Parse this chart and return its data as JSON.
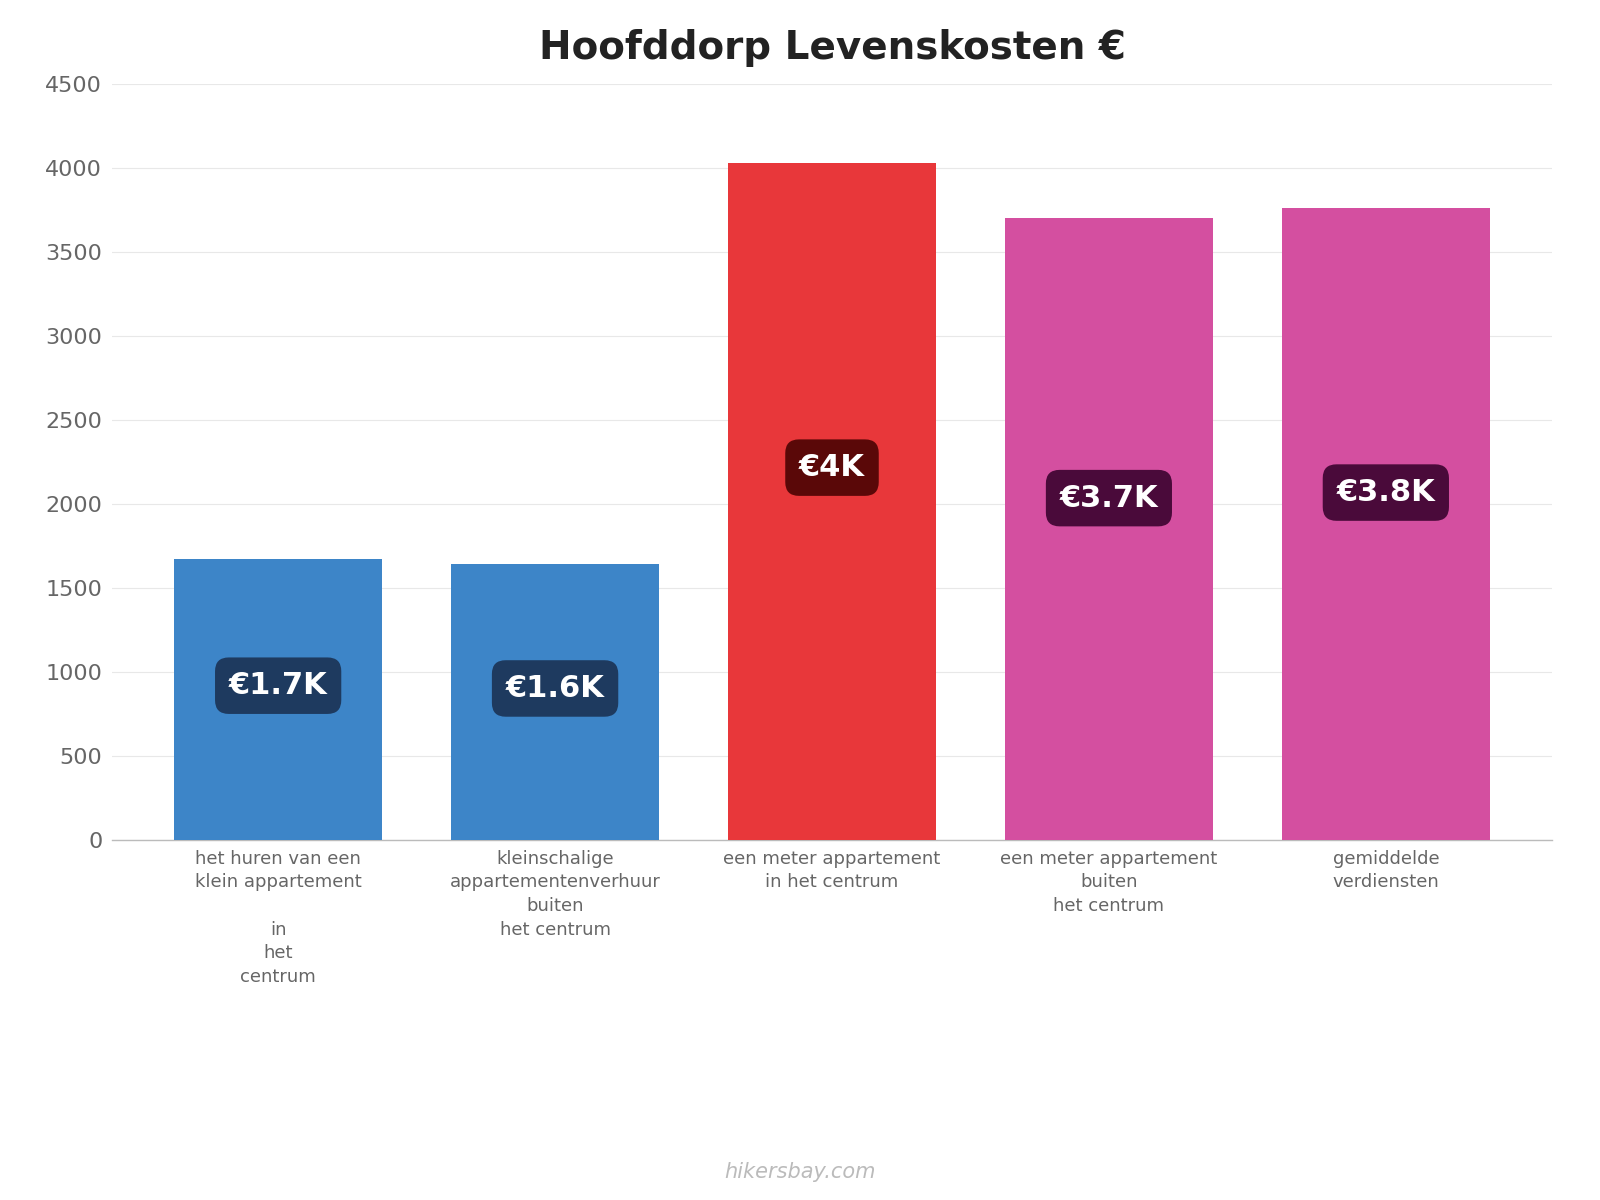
{
  "title": "Hoofddorp Levenskosten €",
  "categories": [
    "het huren van een\nklein appartement\n\nin\nhet\ncentrum",
    "kleinschalige\nappartementenverhuur\nbuiten\nhet centrum",
    "een meter appartement\nin het centrum",
    "een meter appartement\nbuiten\nhet centrum",
    "gemiddelde\nverdiensten"
  ],
  "values": [
    1670,
    1640,
    4030,
    3700,
    3760
  ],
  "bar_colors": [
    "#3d85c8",
    "#3d85c8",
    "#e8373a",
    "#d44fa0",
    "#d44fa0"
  ],
  "label_texts": [
    "€1.7K",
    "€1.6K",
    "€4K",
    "€3.7K",
    "€3.8K"
  ],
  "label_bg_colors": [
    "#1e3a5f",
    "#1e3a5f",
    "#5a0808",
    "#4a0a3a",
    "#4a0a3a"
  ],
  "ylim": [
    0,
    4500
  ],
  "yticks": [
    0,
    500,
    1000,
    1500,
    2000,
    2500,
    3000,
    3500,
    4000,
    4500
  ],
  "title_fontsize": 28,
  "tick_fontsize": 16,
  "label_fontsize": 22,
  "xlabel_fontsize": 13,
  "watermark": "hikersbay.com",
  "background_color": "#ffffff"
}
